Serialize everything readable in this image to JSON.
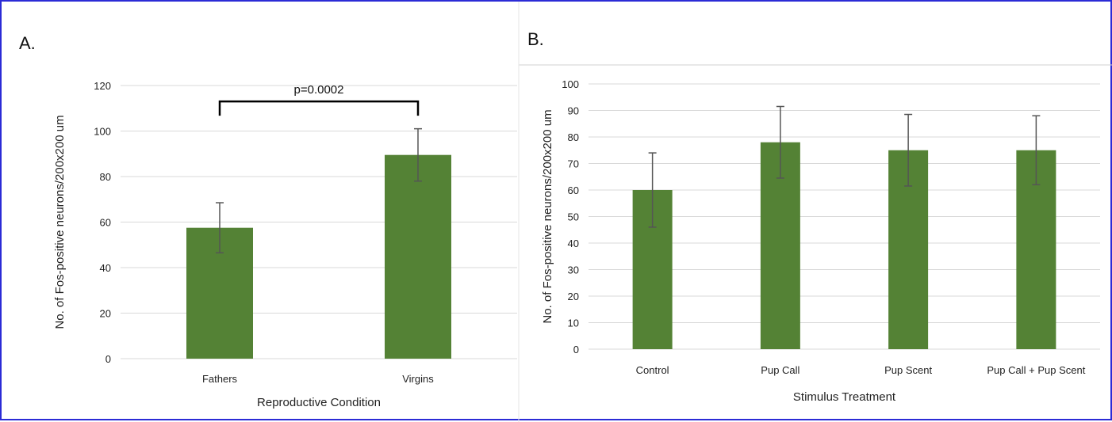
{
  "chart_data": [
    {
      "panel_label": "A.",
      "type": "bar",
      "categories": [
        "Fathers",
        "Virgins"
      ],
      "values": [
        57.5,
        89.5
      ],
      "errors": [
        11,
        11.5
      ],
      "xlabel": "Reproductive Condition",
      "ylabel": "No. of Fos-positive neurons/200x200 um",
      "ylim": [
        0,
        120
      ],
      "yticks": [
        0,
        20,
        40,
        60,
        80,
        100,
        120
      ],
      "grid": true,
      "bar_color": "#548235",
      "significance": {
        "label": "p=0.0002",
        "between": [
          "Fathers",
          "Virgins"
        ],
        "y": 113
      }
    },
    {
      "panel_label": "B.",
      "type": "bar",
      "categories": [
        "Control",
        "Pup Call",
        "Pup Scent",
        "Pup Call + Pup Scent"
      ],
      "values": [
        60,
        78,
        75,
        75
      ],
      "errors": [
        14,
        13.5,
        13.5,
        13
      ],
      "xlabel": "Stimulus Treatment",
      "ylabel": "No. of Fos-positive neurons/200x200 um",
      "ylim": [
        0,
        100
      ],
      "yticks": [
        0,
        10,
        20,
        30,
        40,
        50,
        60,
        70,
        80,
        90,
        100
      ],
      "grid": true,
      "bar_color": "#548235"
    }
  ]
}
